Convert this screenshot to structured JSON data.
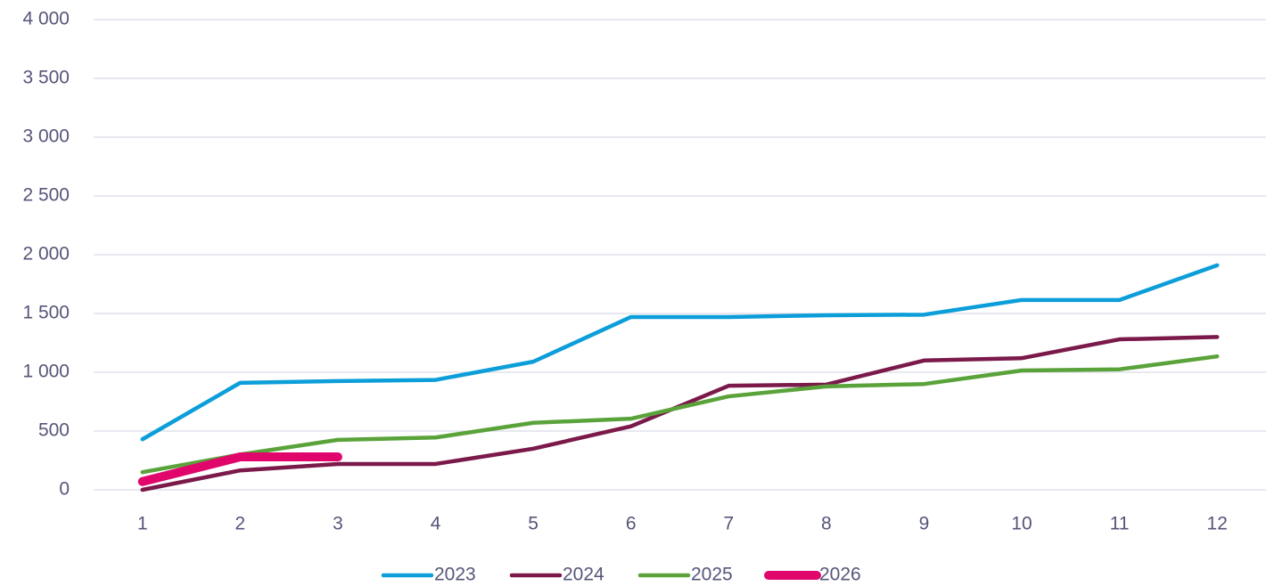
{
  "chart_data": {
    "type": "line",
    "categories": [
      "1",
      "2",
      "3",
      "4",
      "5",
      "6",
      "7",
      "8",
      "9",
      "10",
      "11",
      "12"
    ],
    "series": [
      {
        "name": "2023",
        "color": "#0c9ed9",
        "values": [
          430,
          910,
          925,
          935,
          1090,
          1470,
          1470,
          1485,
          1490,
          1615,
          1615,
          1910
        ]
      },
      {
        "name": "2024",
        "color": "#7b1a4a",
        "values": [
          0,
          165,
          220,
          220,
          350,
          540,
          885,
          895,
          1100,
          1120,
          1280,
          1300
        ]
      },
      {
        "name": "2025",
        "color": "#5aa33a",
        "values": [
          150,
          300,
          425,
          445,
          570,
          605,
          795,
          880,
          900,
          1015,
          1025,
          1135
        ]
      },
      {
        "name": "2026",
        "color": "#e0066b",
        "values": [
          70,
          280,
          280,
          null,
          null,
          null,
          null,
          null,
          null,
          null,
          null,
          null
        ]
      }
    ],
    "ylim": [
      0,
      4000
    ],
    "yticks": [
      0,
      500,
      {
        "value": 1000,
        "label": "1 000"
      },
      {
        "value": 1500,
        "label": "1 500"
      },
      {
        "value": 2000,
        "label": "2 000"
      },
      {
        "value": 2500,
        "label": "2 500"
      },
      {
        "value": 3000,
        "label": "3 000"
      },
      {
        "value": 3500,
        "label": "3 500"
      },
      {
        "value": 4000,
        "label": "4 000"
      }
    ],
    "grid": true,
    "legend": "bottom"
  }
}
